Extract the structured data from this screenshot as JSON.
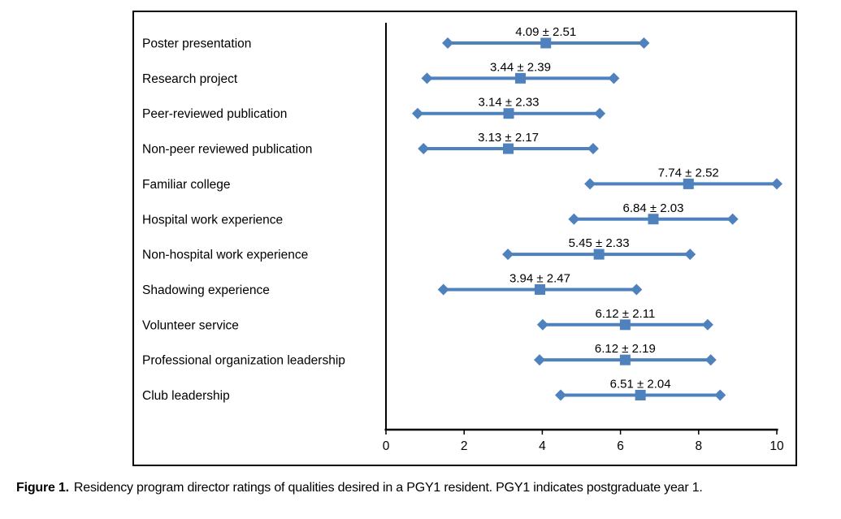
{
  "chart_data": {
    "type": "scatter",
    "subtype": "horizontal-mean-sd-range-plot",
    "title": "",
    "xlabel": "",
    "ylabel": "",
    "xlim": [
      0,
      10
    ],
    "x_ticks": [
      0,
      2,
      4,
      6,
      8,
      10
    ],
    "grid": false,
    "legend": "none",
    "marker_color": "#4f81bd",
    "axis_color": "#000000",
    "categories": [
      "Poster presentation",
      "Research project",
      "Peer-reviewed publication",
      "Non-peer reviewed publication",
      "Familiar college",
      "Hospital work experience",
      "Non-hospital work experience",
      "Shadowing experience",
      "Volunteer service",
      "Professional organization leadership",
      "Club leadership"
    ],
    "means": [
      4.09,
      3.44,
      3.14,
      3.13,
      7.74,
      6.84,
      5.45,
      3.94,
      6.12,
      6.12,
      6.51
    ],
    "sds": [
      2.51,
      2.39,
      2.33,
      2.17,
      2.52,
      2.03,
      2.33,
      2.47,
      2.11,
      2.19,
      2.04
    ],
    "point_labels": [
      "4.09 ± 2.51",
      "3.44 ± 2.39",
      "3.14 ± 2.33",
      "3.13 ± 2.17",
      "7.74 ± 2.52",
      "6.84 ± 2.03",
      "5.45 ± 2.33",
      "3.94 ± 2.47",
      "6.12 ± 2.11",
      "6.12 ± 2.19",
      "6.51 ± 2.04"
    ]
  },
  "caption": {
    "label": "Figure 1.",
    "text": "Residency program director ratings of qualities desired in a PGY1 resident. PGY1 indicates postgraduate year 1."
  }
}
